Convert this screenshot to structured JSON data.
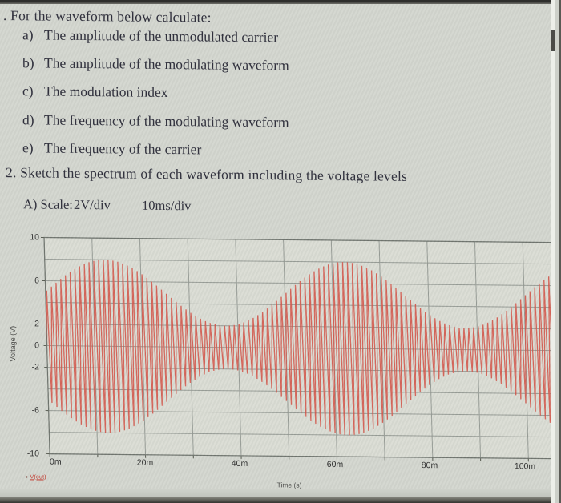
{
  "question1": {
    "intro": ". For the waveform below calculate:",
    "items": [
      {
        "label": "a)",
        "text": "The amplitude of the unmodulated carrier"
      },
      {
        "label": "b)",
        "text": "The amplitude of the modulating waveform"
      },
      {
        "label": "c)",
        "text": "The modulation index"
      },
      {
        "label": "d)",
        "text": "The frequency of the modulating waveform"
      },
      {
        "label": "e)",
        "text": "The frequency of the carrier"
      }
    ]
  },
  "question2": {
    "text": "2. Sketch the spectrum of each waveform including the voltage levels",
    "scale_label": "A) Scale:",
    "scale_voltage": "2V/div",
    "scale_time": "10ms/div"
  },
  "chart_data": {
    "type": "line",
    "title": "",
    "xlabel": "Time (s)",
    "ylabel": "Voltage (V)",
    "x_ticks": [
      "0m",
      "20m",
      "40m",
      "60m",
      "80m",
      "100m"
    ],
    "x_tick_values_ms": [
      0,
      20,
      40,
      60,
      80,
      100
    ],
    "y_ticks": [
      10,
      6,
      2,
      0,
      -2,
      -6,
      -10
    ],
    "ylim": [
      -10,
      10
    ],
    "xlim_ms": [
      0,
      106
    ],
    "grid": true,
    "x_grid_step_ms": 10,
    "y_grid_step_v": 2,
    "legend": {
      "label": "V(out)",
      "marker": "triangle-right",
      "position": "bottom-left"
    },
    "series": [
      {
        "name": "V(out)",
        "waveform": "amplitude-modulated sine",
        "carrier_amplitude_v": 5,
        "modulating_amplitude_v": 3,
        "modulation_index": 0.6,
        "envelope_max_v": 8,
        "envelope_min_v": 2,
        "carrier_freq_hz": 1000,
        "modulating_freq_hz": 20,
        "color": "#d4584c"
      }
    ],
    "colors": {
      "plot_background": "#dadcd4",
      "grid": "#979c96",
      "border": "#6f746e",
      "tick_text": "#2f2f2f"
    }
  }
}
